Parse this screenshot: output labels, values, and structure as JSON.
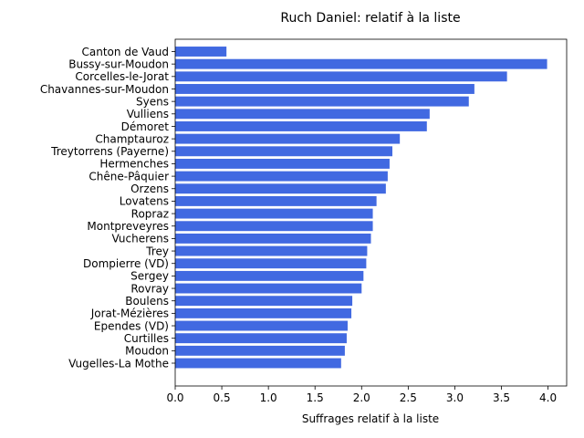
{
  "chart_data": {
    "type": "bar",
    "orientation": "horizontal",
    "title": "Ruch Daniel: relatif à la liste",
    "xlabel": "Suffrages relatif à la liste",
    "ylabel": "",
    "xlim": [
      0,
      4.2
    ],
    "xticks": [
      "0.0",
      "0.5",
      "1.0",
      "1.5",
      "2.0",
      "2.5",
      "3.0",
      "3.5",
      "4.0"
    ],
    "grid": false,
    "legend": "none",
    "bar_color": "#4169e1",
    "categories": [
      "Canton de Vaud",
      "Bussy-sur-Moudon",
      "Corcelles-le-Jorat",
      "Chavannes-sur-Moudon",
      "Syens",
      "Vulliens",
      "Démoret",
      "Champtauroz",
      "Treytorrens (Payerne)",
      "Hermenches",
      "Chêne-Pâquier",
      "Orzens",
      "Lovatens",
      "Ropraz",
      "Montpreveyres",
      "Vucherens",
      "Trey",
      "Dompierre (VD)",
      "Sergey",
      "Rovray",
      "Boulens",
      "Jorat-Mézières",
      "Ependes (VD)",
      "Curtilles",
      "Moudon",
      "Vugelles-La Mothe"
    ],
    "values": [
      0.55,
      3.99,
      3.56,
      3.21,
      3.15,
      2.73,
      2.7,
      2.41,
      2.33,
      2.3,
      2.28,
      2.26,
      2.16,
      2.12,
      2.12,
      2.1,
      2.06,
      2.05,
      2.02,
      2.0,
      1.9,
      1.89,
      1.85,
      1.84,
      1.82,
      1.78
    ]
  }
}
